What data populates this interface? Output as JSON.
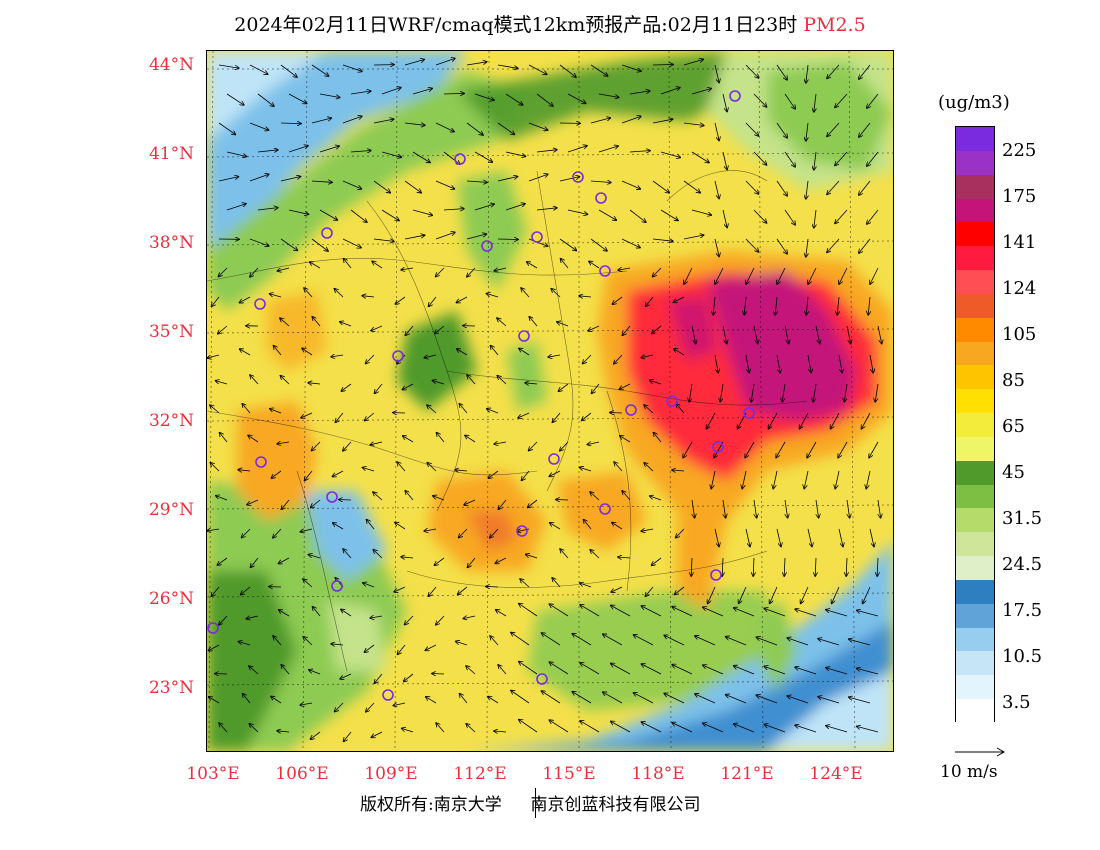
{
  "header": {
    "title": "2024年02月11日WRF/cmaq模式12km预报产品:02月11日23时",
    "pollutant": "PM2.5"
  },
  "axes": {
    "lat_labels": [
      "44°N",
      "41°N",
      "38°N",
      "35°N",
      "32°N",
      "29°N",
      "26°N",
      "23°N"
    ],
    "lon_labels": [
      "103°E",
      "106°E",
      "109°E",
      "112°E",
      "115°E",
      "118°E",
      "121°E",
      "124°E"
    ]
  },
  "legend": {
    "unit": "(ug/m3)",
    "labels": [
      "225",
      "175",
      "141",
      "124",
      "105",
      "85",
      "65",
      "45",
      "31.5",
      "24.5",
      "17.5",
      "10.5",
      "3.5"
    ],
    "colors": [
      "#7a2be0",
      "#9a32c8",
      "#a8305e",
      "#c4147a",
      "#ff0000",
      "#ff1a40",
      "#ff4f55",
      "#ee5a28",
      "#ff8a00",
      "#f8a820",
      "#ffc400",
      "#ffe000",
      "#f3ec3a",
      "#eef567",
      "#4f9a2b",
      "#7cbf42",
      "#b5dc6a",
      "#cfe69a",
      "#dfefc8",
      "#2e7fbf",
      "#5fa3d8",
      "#97cdef",
      "#c6e6f8",
      "#e2f4fc",
      "#ffffff"
    ],
    "wind_ref": "10 m/s"
  },
  "footer": {
    "copyright_left": "版权所有:南京大学",
    "copyright_right": "南京创蓝科技有限公司"
  },
  "map": {
    "colors": {
      "sea_light": "#bfe4f7",
      "sea_mid": "#7dc1ea",
      "sea_dark": "#3f8fd0",
      "green_dark": "#4f9a2b",
      "green_mid": "#8ecb52",
      "green_light": "#c5e38a",
      "yellow": "#f4e04a",
      "yellow_light": "#f2ee78",
      "orange": "#f8a820",
      "orange_dark": "#f07a2a",
      "red": "#ff2a3a",
      "magenta": "#c4147a",
      "city_marker": "#7a2be0"
    }
  }
}
